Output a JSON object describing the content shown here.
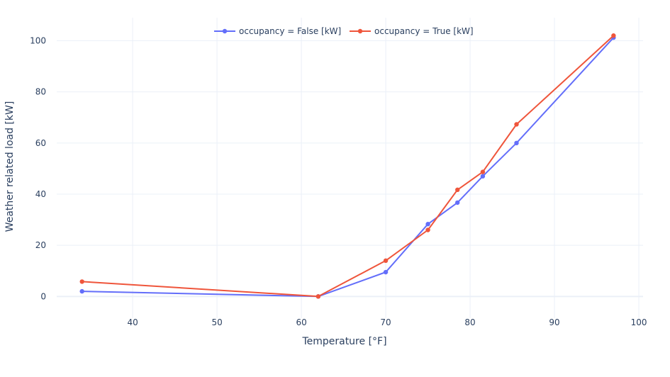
{
  "chart_data": {
    "type": "line",
    "xlabel": "Temperature [°F]",
    "ylabel": "Weather related load [kW]",
    "xlim": [
      31.0,
      100.5
    ],
    "ylim": [
      -8.5,
      109
    ],
    "x_ticks": [
      "40",
      "50",
      "60",
      "70",
      "80",
      "90",
      "100"
    ],
    "y_ticks": [
      "0",
      "20",
      "40",
      "60",
      "80",
      "100"
    ],
    "grid": true,
    "legend_position": "top-center",
    "series": [
      {
        "name": "occupancy = False [kW]",
        "color": "#636efa",
        "x": [
          34,
          62,
          70,
          75,
          78.5,
          81.5,
          85.5,
          97
        ],
        "y": [
          2,
          0,
          9.5,
          28.3,
          36.7,
          47,
          60,
          101.2
        ]
      },
      {
        "name": "occupancy = True [kW]",
        "color": "#ef553b",
        "x": [
          34,
          62,
          70,
          75,
          78.5,
          81.5,
          85.5,
          97
        ],
        "y": [
          5.8,
          0,
          14,
          26,
          41.7,
          48.7,
          67.3,
          102
        ]
      }
    ]
  }
}
